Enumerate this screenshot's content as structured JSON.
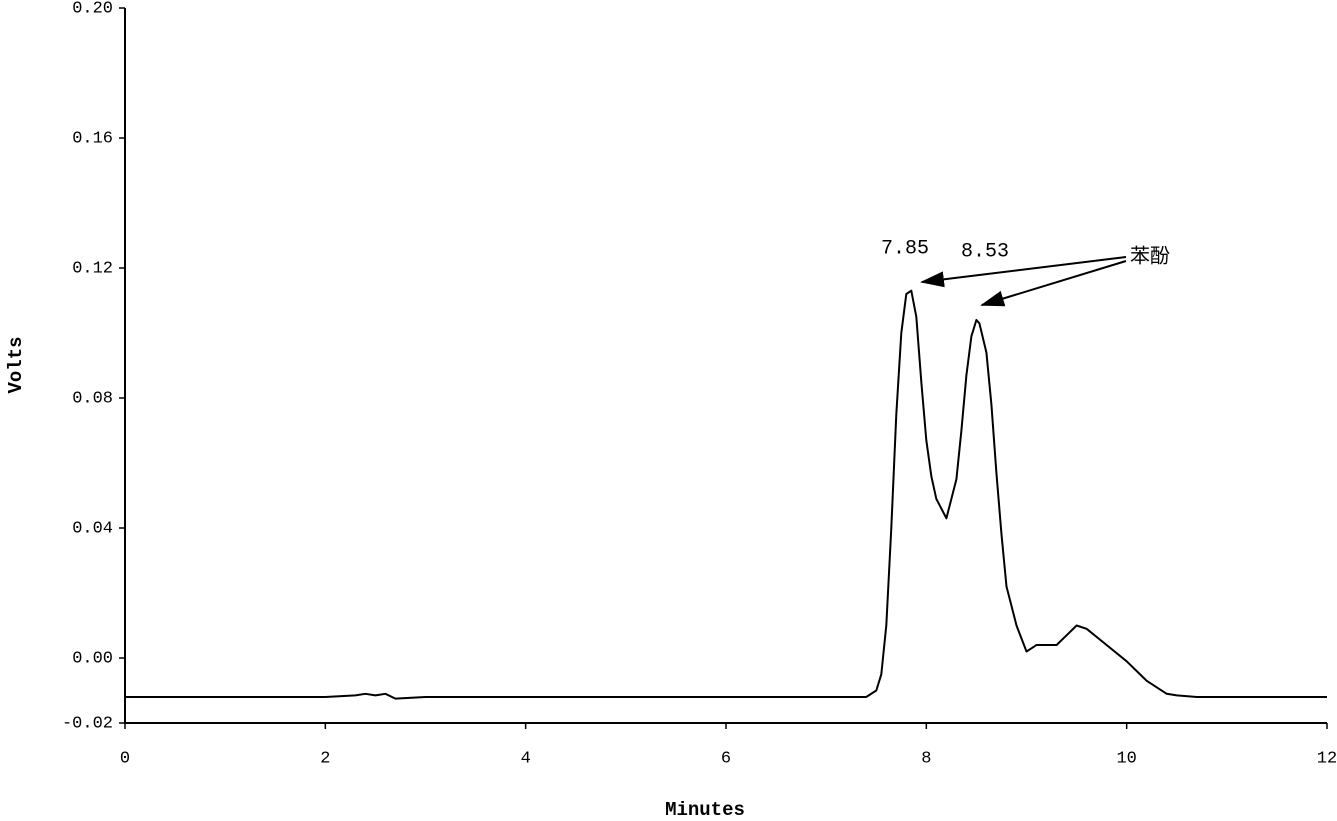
{
  "chart_data": {
    "type": "line",
    "x_label": "Minutes",
    "y_label": "Volts",
    "xlim": [
      0,
      12
    ],
    "xticks": [
      0,
      2,
      4,
      6,
      8,
      10,
      12
    ],
    "ylim": [
      -0.02,
      0.2
    ],
    "yticks": [
      -0.02,
      {
        "value": 0,
        "label": "0.00"
      },
      0.04,
      0.08,
      0.12,
      0.16,
      {
        "value": 0.2,
        "label": "0.20"
      }
    ],
    "annotations": [
      {
        "text": "7.85"
      },
      {
        "text": "8.53"
      },
      {
        "text": "苯酚"
      }
    ],
    "series": [
      {
        "color": "#000000",
        "x": [
          0,
          1,
          2,
          2.3,
          2.4,
          2.5,
          2.6,
          2.7,
          3,
          4,
          5,
          6,
          7,
          7.4,
          7.5,
          7.55,
          7.6,
          7.65,
          7.7,
          7.75,
          7.8,
          7.85,
          7.9,
          7.95,
          8.0,
          8.05,
          8.1,
          8.2,
          8.3,
          8.35,
          8.4,
          8.45,
          8.5,
          8.53,
          8.6,
          8.65,
          8.7,
          8.75,
          8.8,
          8.9,
          9.0,
          9.05,
          9.1,
          9.3,
          9.4,
          9.5,
          9.6,
          9.8,
          10.0,
          10.2,
          10.4,
          10.5,
          10.7,
          11,
          12
        ],
        "values": [
          -0.012,
          -0.012,
          -0.012,
          -0.0115,
          -0.011,
          -0.0115,
          -0.011,
          -0.0125,
          -0.012,
          -0.012,
          -0.012,
          -0.012,
          -0.012,
          -0.012,
          -0.01,
          -0.005,
          0.01,
          0.04,
          0.075,
          0.1,
          0.112,
          0.113,
          0.105,
          0.085,
          0.067,
          0.056,
          0.049,
          0.043,
          0.055,
          0.07,
          0.087,
          0.099,
          0.104,
          0.103,
          0.094,
          0.078,
          0.057,
          0.038,
          0.022,
          0.01,
          0.002,
          0.003,
          0.004,
          0.004,
          0.007,
          0.01,
          0.009,
          0.004,
          -0.001,
          -0.007,
          -0.011,
          -0.0115,
          -0.012,
          -0.012,
          -0.012
        ]
      }
    ]
  }
}
